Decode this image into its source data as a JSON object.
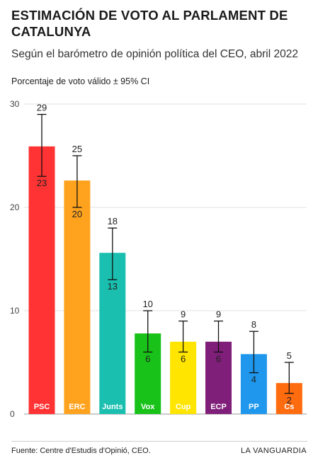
{
  "header": {
    "title": "ESTIMACIÓN DE VOTO AL PARLAMENT DE CATALUNYA",
    "subtitle": "Según el barómetro de opinión política del CEO, abril 2022",
    "axis_caption": "Porcentaje de voto válido ± 95% CI"
  },
  "footer": {
    "source": "Fuente: Centre d'Estudis d'Opinió, CEO.",
    "brand": "LA VANGUARDIA"
  },
  "chart_data": {
    "type": "bar",
    "title": "ESTIMACIÓN DE VOTO AL PARLAMENT DE CATALUNYA",
    "subtitle": "Según el barómetro de opinión política del CEO, abril 2022",
    "ylabel": "Porcentaje de voto válido ± 95% CI",
    "ylim": [
      0,
      30
    ],
    "yticks": [
      0,
      10,
      20,
      30
    ],
    "grid": true,
    "categories": [
      "PSC",
      "ERC",
      "Junts",
      "Vox",
      "Cup",
      "ECP",
      "PP",
      "Cs"
    ],
    "values": [
      25.9,
      22.6,
      15.6,
      7.8,
      7.0,
      7.0,
      5.8,
      3.0
    ],
    "upper": [
      29,
      25,
      18,
      10,
      9,
      9,
      8,
      5
    ],
    "lower": [
      23,
      20,
      13,
      6,
      6,
      6,
      4,
      2
    ],
    "colors": [
      "#ff3333",
      "#ffa31f",
      "#1abfb0",
      "#19c219",
      "#ffe500",
      "#7f1f7a",
      "#1e97ec",
      "#ff6b0f"
    ]
  }
}
